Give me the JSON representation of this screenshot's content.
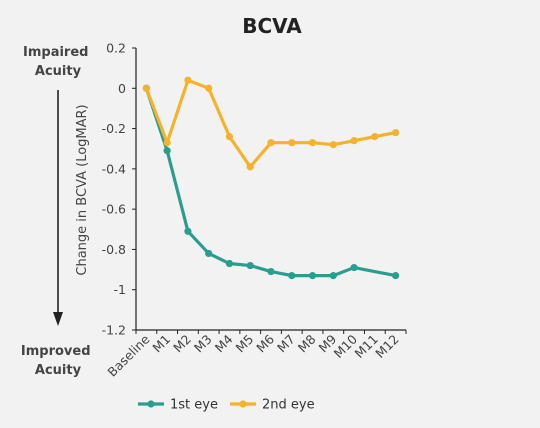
{
  "chart_data": {
    "type": "line",
    "title": "BCVA",
    "ylabel": "Change in BCVA (LogMAR)",
    "xlabel": "",
    "categories": [
      "Baseline",
      "M1",
      "M2",
      "M3",
      "M4",
      "M5",
      "M6",
      "M7",
      "M8",
      "M9",
      "M10",
      "M11",
      "M12"
    ],
    "ylim": [
      -1.2,
      0.2
    ],
    "yticks": [
      0.2,
      0,
      -0.2,
      -0.4,
      -0.6,
      -0.8,
      -1,
      -1.2
    ],
    "ytick_labels": [
      "0.2",
      "0",
      "-0.2",
      "-0.4",
      "-0.6",
      "-0.8",
      "-1",
      "-1.2"
    ],
    "grid": false,
    "legend_position": "bottom",
    "series": [
      {
        "name": "1st eye",
        "color": "#2a9d8f",
        "values": [
          0,
          -0.31,
          -0.71,
          -0.82,
          -0.87,
          -0.88,
          -0.91,
          -0.93,
          -0.93,
          -0.93,
          -0.89,
          null,
          -0.93
        ]
      },
      {
        "name": "2nd eye",
        "color": "#f4b32a",
        "values": [
          0,
          -0.27,
          0.04,
          0.0,
          -0.24,
          -0.39,
          -0.27,
          -0.27,
          -0.27,
          -0.28,
          -0.26,
          -0.24,
          -0.22
        ]
      }
    ],
    "annotations": {
      "top": "Impaired Acuity",
      "bottom": "Improved Acuity"
    }
  }
}
